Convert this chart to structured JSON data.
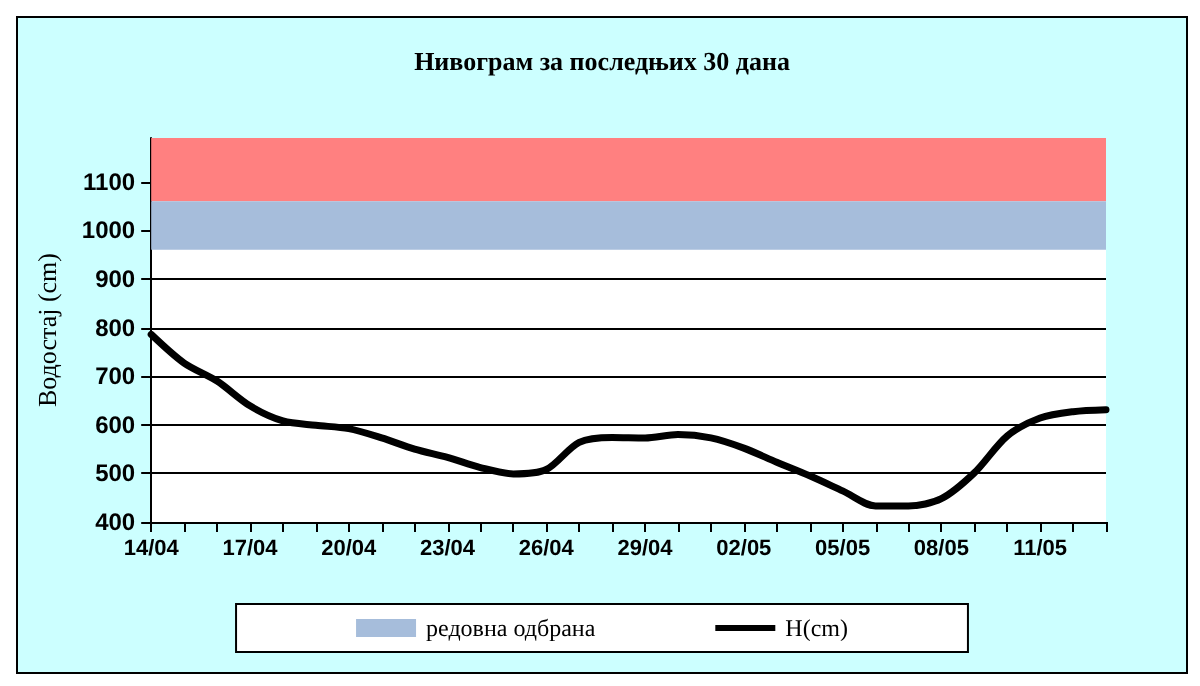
{
  "chart_data": {
    "type": "line",
    "title": "Нивограм за последњих 30 дана",
    "ylabel": "Водостај (cm)",
    "categories": [
      "14/04",
      null,
      null,
      "17/04",
      null,
      null,
      "20/04",
      null,
      null,
      "23/04",
      null,
      null,
      "26/04",
      null,
      null,
      "29/04",
      null,
      null,
      "02/05",
      null,
      null,
      "05/05",
      null,
      null,
      "08/05",
      null,
      null,
      "11/05",
      null,
      null
    ],
    "series": [
      {
        "name": "H(cm)",
        "color": "#000000",
        "values": [
          786,
          727,
          690,
          639,
          608,
          599,
          592,
          573,
          550,
          533,
          512,
          499,
          508,
          564,
          574,
          573,
          580,
          573,
          552,
          523,
          495,
          464,
          433,
          433,
          448,
          501,
          577,
          614,
          627,
          631
        ]
      }
    ],
    "ylim": [
      400,
      1190
    ],
    "yticks": [
      400,
      500,
      600,
      700,
      800,
      900,
      1000,
      1100
    ],
    "grid": "y",
    "legend": "bottom",
    "marker": "none",
    "line_style": "solid",
    "bands": [
      {
        "axis": "y",
        "from": 1060,
        "to": 1190,
        "color": "#ff8080"
      },
      {
        "axis": "y",
        "from": 960,
        "to": 1060,
        "label": "редовна одбрана",
        "color": "#a6bddb"
      }
    ]
  }
}
